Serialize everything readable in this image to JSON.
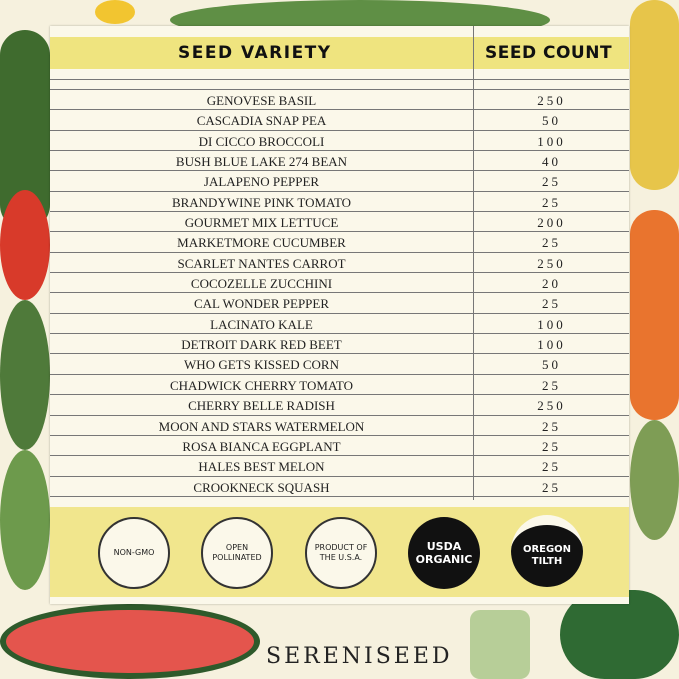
{
  "table": {
    "headers": [
      "SEED VARIETY",
      "SEED COUNT"
    ],
    "rows": [
      {
        "variety": "GENOVESE BASIL",
        "count": "250"
      },
      {
        "variety": "CASCADIA SNAP PEA",
        "count": "50"
      },
      {
        "variety": "DI CICCO BROCCOLI",
        "count": "100"
      },
      {
        "variety": "BUSH BLUE LAKE 274 BEAN",
        "count": "40"
      },
      {
        "variety": "JALAPENO PEPPER",
        "count": "25"
      },
      {
        "variety": "BRANDYWINE PINK TOMATO",
        "count": "25"
      },
      {
        "variety": "GOURMET MIX LETTUCE",
        "count": "200"
      },
      {
        "variety": "MARKETMORE CUCUMBER",
        "count": "25"
      },
      {
        "variety": "SCARLET NANTES CARROT",
        "count": "250"
      },
      {
        "variety": "COCOZELLE ZUCCHINI",
        "count": "20"
      },
      {
        "variety": "CAL WONDER PEPPER",
        "count": "25"
      },
      {
        "variety": "LACINATO KALE",
        "count": "100"
      },
      {
        "variety": "DETROIT DARK RED BEET",
        "count": "100"
      },
      {
        "variety": "WHO GETS KISSED CORN",
        "count": "50"
      },
      {
        "variety": "CHADWICK CHERRY TOMATO",
        "count": "25"
      },
      {
        "variety": "CHERRY BELLE RADISH",
        "count": "250"
      },
      {
        "variety": "MOON AND STARS WATERMELON",
        "count": "25"
      },
      {
        "variety": "ROSA BIANCA EGGPLANT",
        "count": "25"
      },
      {
        "variety": "HALES BEST MELON",
        "count": "25"
      },
      {
        "variety": "CROOKNECK SQUASH",
        "count": "25"
      }
    ]
  },
  "badges": [
    "NON-GMO",
    "OPEN POLLINATED",
    "PRODUCT OF THE U.S.A.",
    "USDA ORGANIC",
    "OREGON TILTH"
  ],
  "brand": "SERENISEED",
  "colors": {
    "header": "#efe47f",
    "card": "#fbf8ea",
    "badge_band": "#f1e68d"
  }
}
